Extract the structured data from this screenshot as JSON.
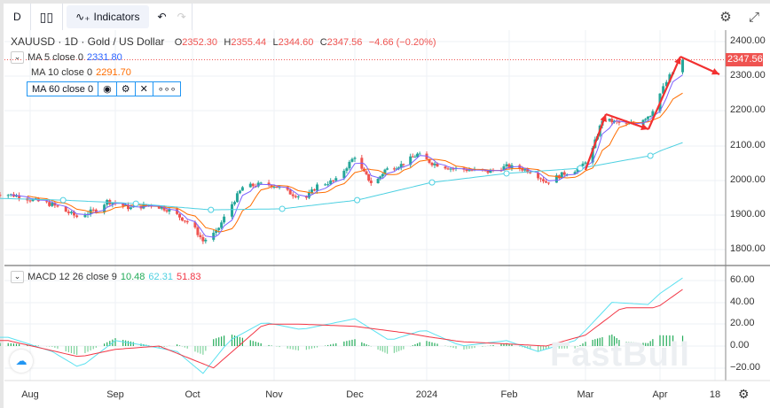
{
  "toolbar": {
    "interval": "D",
    "indicators_label": "Indicators",
    "undo_icon": "undo-icon",
    "redo_icon": "redo-icon",
    "settings_icon": "gear-icon",
    "fullscreen_icon": "fullscreen-icon"
  },
  "symbol": {
    "title": "XAUUSD · 1D · Gold / US Dollar",
    "o_label": "O",
    "o": "2352.30",
    "h_label": "H",
    "h": "2355.44",
    "l_label": "L",
    "l": "2344.60",
    "c_label": "C",
    "c": "2347.56",
    "change": "−4.66 (−0.20%)",
    "last_price": "2347.56"
  },
  "indicators": {
    "ma5": {
      "label": "MA 5 close 0",
      "value": "2331.80",
      "color": "#2962ff"
    },
    "ma10": {
      "label": "MA 10 close 0",
      "value": "2291.70",
      "color": "#ff6d00"
    },
    "ma60": {
      "label": "MA 60 close 0",
      "color": "#4dd0e1"
    },
    "macd": {
      "label": "MACD 12 26 close 9",
      "hist": "10.48",
      "macd": "62.31",
      "signal": "51.83"
    }
  },
  "colors": {
    "up": "#26a69a",
    "down": "#ef5350",
    "macd": "#5ce1f0",
    "signal": "#f23645",
    "hist": "#22ab58",
    "annotation": "#f23030"
  },
  "price_axis": [
    "2400.00",
    "2300.00",
    "2200.00",
    "2100.00",
    "2000.00",
    "1900.00",
    "1800.00"
  ],
  "macd_axis": [
    "60.00",
    "40.00",
    "20.00",
    "0.00",
    "−20.00"
  ],
  "time_axis": [
    "Aug",
    "Sep",
    "Oct",
    "Nov",
    "Dec",
    "2024",
    "Feb",
    "Mar",
    "Apr",
    "18"
  ],
  "watermark": "FastBull",
  "chart_data": {
    "type": "candlestick",
    "price_ylim": [
      1750,
      2420
    ],
    "close_points": [
      [
        "2023-07-21",
        1962
      ],
      [
        "2023-07-28",
        1955
      ],
      [
        "2023-08-01",
        1945
      ],
      [
        "2023-08-09",
        1930
      ],
      [
        "2023-08-18",
        1895
      ],
      [
        "2023-08-25",
        1915
      ],
      [
        "2023-08-29",
        1940
      ],
      [
        "2023-09-07",
        1920
      ],
      [
        "2023-09-15",
        1930
      ],
      [
        "2023-09-22",
        1915
      ],
      [
        "2023-10-01",
        1870
      ],
      [
        "2023-10-05",
        1825
      ],
      [
        "2023-10-10",
        1850
      ],
      [
        "2023-10-15",
        1920
      ],
      [
        "2023-10-20",
        1980
      ],
      [
        "2023-10-28",
        1990
      ],
      [
        "2023-11-01",
        1985
      ],
      [
        "2023-11-08",
        1960
      ],
      [
        "2023-11-13",
        1950
      ],
      [
        "2023-11-17",
        1985
      ],
      [
        "2023-11-24",
        2000
      ],
      [
        "2023-11-28",
        2040
      ],
      [
        "2023-12-01",
        2070
      ],
      [
        "2023-12-04",
        2030
      ],
      [
        "2023-12-09",
        1985
      ],
      [
        "2023-12-14",
        2030
      ],
      [
        "2023-12-21",
        2045
      ],
      [
        "2023-12-28",
        2075
      ],
      [
        "2024-01-03",
        2050
      ],
      [
        "2024-01-10",
        2035
      ],
      [
        "2024-01-17",
        2030
      ],
      [
        "2024-01-24",
        2025
      ],
      [
        "2024-01-31",
        2040
      ],
      [
        "2024-02-05",
        2035
      ],
      [
        "2024-02-10",
        2025
      ],
      [
        "2024-02-15",
        1995
      ],
      [
        "2024-02-22",
        2020
      ],
      [
        "2024-02-28",
        2035
      ],
      [
        "2024-03-04",
        2090
      ],
      [
        "2024-03-08",
        2175
      ],
      [
        "2024-03-12",
        2170
      ],
      [
        "2024-03-18",
        2160
      ],
      [
        "2024-03-22",
        2165
      ],
      [
        "2024-03-28",
        2190
      ],
      [
        "2024-04-01",
        2250
      ],
      [
        "2024-04-04",
        2300
      ],
      [
        "2024-04-08",
        2347.56
      ]
    ],
    "ma60_points": [
      [
        "2023-07-21",
        1948
      ],
      [
        "2023-08-13",
        1943
      ],
      [
        "2023-09-09",
        1933
      ],
      [
        "2023-10-08",
        1915
      ],
      [
        "2023-11-04",
        1918
      ],
      [
        "2023-12-02",
        1943
      ],
      [
        "2024-01-03",
        1994
      ],
      [
        "2024-01-31",
        2020
      ],
      [
        "2024-02-28",
        2035
      ],
      [
        "2024-03-28",
        2071
      ],
      [
        "2024-04-08",
        2109
      ]
    ],
    "macd_ylim": [
      -32,
      68
    ],
    "macd_points": [
      [
        "2023-07-21",
        8
      ],
      [
        "2023-07-24",
        8
      ],
      [
        "2023-08-09",
        -5
      ],
      [
        "2023-08-19",
        -20
      ],
      [
        "2023-09-01",
        5
      ],
      [
        "2023-09-14",
        0
      ],
      [
        "2023-09-25",
        -5
      ],
      [
        "2023-10-05",
        -25
      ],
      [
        "2023-10-15",
        5
      ],
      [
        "2023-10-28",
        22
      ],
      [
        "2023-11-11",
        15
      ],
      [
        "2023-12-01",
        25
      ],
      [
        "2023-12-16",
        5
      ],
      [
        "2023-12-31",
        15
      ],
      [
        "2024-01-14",
        0
      ],
      [
        "2024-01-31",
        5
      ],
      [
        "2024-02-12",
        -5
      ],
      [
        "2024-02-26",
        5
      ],
      [
        "2024-03-12",
        40
      ],
      [
        "2024-03-27",
        38
      ],
      [
        "2024-04-08",
        62.31
      ]
    ],
    "signal_points": [
      [
        "2023-07-21",
        5
      ],
      [
        "2023-07-24",
        5
      ],
      [
        "2023-08-19",
        -10
      ],
      [
        "2023-09-01",
        -3
      ],
      [
        "2023-09-18",
        0
      ],
      [
        "2023-10-09",
        -20
      ],
      [
        "2023-10-28",
        20
      ],
      [
        "2023-11-11",
        20
      ],
      [
        "2023-12-01",
        18
      ],
      [
        "2023-12-23",
        12
      ],
      [
        "2024-01-14",
        4
      ],
      [
        "2024-01-31",
        2
      ],
      [
        "2024-02-15",
        0
      ],
      [
        "2024-03-01",
        10
      ],
      [
        "2024-03-16",
        35
      ],
      [
        "2024-03-31",
        35
      ],
      [
        "2024-04-08",
        51.83
      ]
    ]
  }
}
